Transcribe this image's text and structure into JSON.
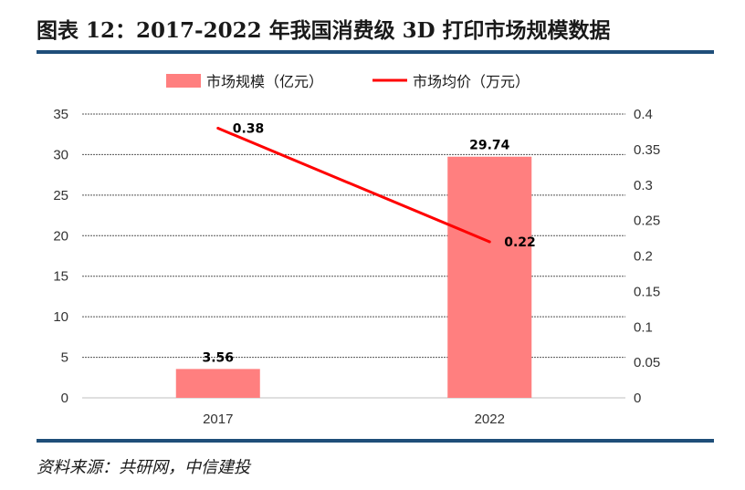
{
  "header": {
    "title": "图表 12：2017-2022 年我国消费级 3D 打印市场规模数据"
  },
  "footer": {
    "source": "资料来源：共研网，中信建投"
  },
  "colors": {
    "bar": "#ff7f7f",
    "line": "#ff0000",
    "rule": "#1f4e79"
  },
  "chart_data": {
    "type": "bar",
    "categories": [
      "2017",
      "2022"
    ],
    "series": [
      {
        "name": "市场规模（亿元）",
        "type": "bar",
        "axis": "left",
        "values": [
          3.56,
          29.74
        ],
        "labels": [
          "3.56",
          "29.74"
        ]
      },
      {
        "name": "市场均价（万元）",
        "type": "line",
        "axis": "right",
        "values": [
          0.38,
          0.22
        ],
        "labels": [
          "0.38",
          "0.22"
        ]
      }
    ],
    "y_left": {
      "ylim": [
        0,
        35
      ],
      "ticks": [
        "0",
        "5",
        "10",
        "15",
        "20",
        "25",
        "30",
        "35"
      ]
    },
    "y_right": {
      "ylim": [
        0,
        0.4
      ],
      "ticks": [
        "0",
        "0.05",
        "0.1",
        "0.15",
        "0.2",
        "0.25",
        "0.3",
        "0.35",
        "0.4"
      ]
    },
    "grid": true,
    "legend": "top"
  }
}
